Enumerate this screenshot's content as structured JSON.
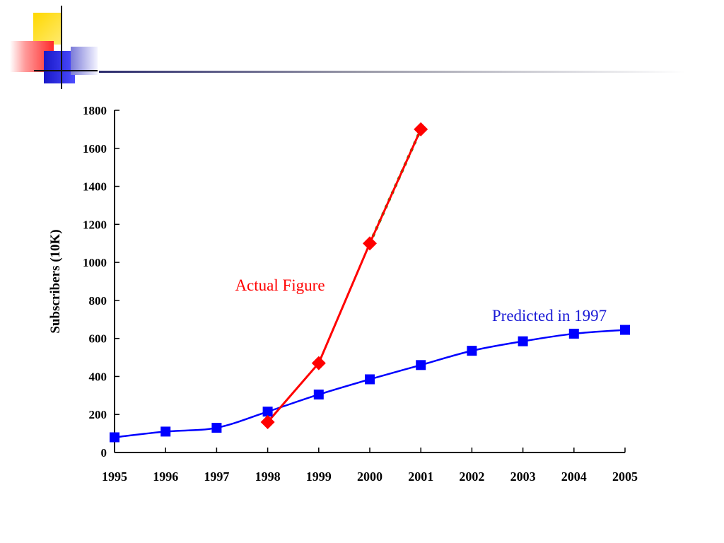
{
  "colors": {
    "predicted": "#0000ff",
    "actual": "#ff0000",
    "projection": "#00b000",
    "axis": "#000000"
  },
  "chart_data": {
    "type": "line",
    "title": "",
    "xlabel": "",
    "ylabel": "Subscribers (10K)",
    "xlim": [
      1995,
      2005
    ],
    "ylim": [
      0,
      1800
    ],
    "x_ticks": [
      "1995",
      "1996",
      "1997",
      "1998",
      "1999",
      "2000",
      "2001",
      "2002",
      "2003",
      "2004",
      "2005"
    ],
    "y_ticks": [
      "0",
      "200",
      "400",
      "600",
      "800",
      "1000",
      "1200",
      "1400",
      "1600",
      "1800"
    ],
    "grid": false,
    "series": [
      {
        "name": "Predicted in 1997",
        "marker": "square",
        "line": "solid",
        "color": "#0000ff",
        "x": [
          1995,
          1996,
          1997,
          1998,
          1999,
          2000,
          2001,
          2002,
          2003,
          2004,
          2005
        ],
        "y": [
          80,
          110,
          130,
          215,
          305,
          385,
          460,
          535,
          585,
          625,
          645
        ]
      },
      {
        "name": "Actual Figure",
        "marker": "diamond",
        "line": "solid",
        "color": "#ff0000",
        "x": [
          1998,
          1999,
          2000,
          2001
        ],
        "y": [
          160,
          470,
          1100,
          1700
        ]
      }
    ],
    "projection": {
      "line": "dotted",
      "color": "#00b000",
      "x": [
        2000,
        2001
      ],
      "y": [
        1100,
        1700
      ]
    }
  }
}
